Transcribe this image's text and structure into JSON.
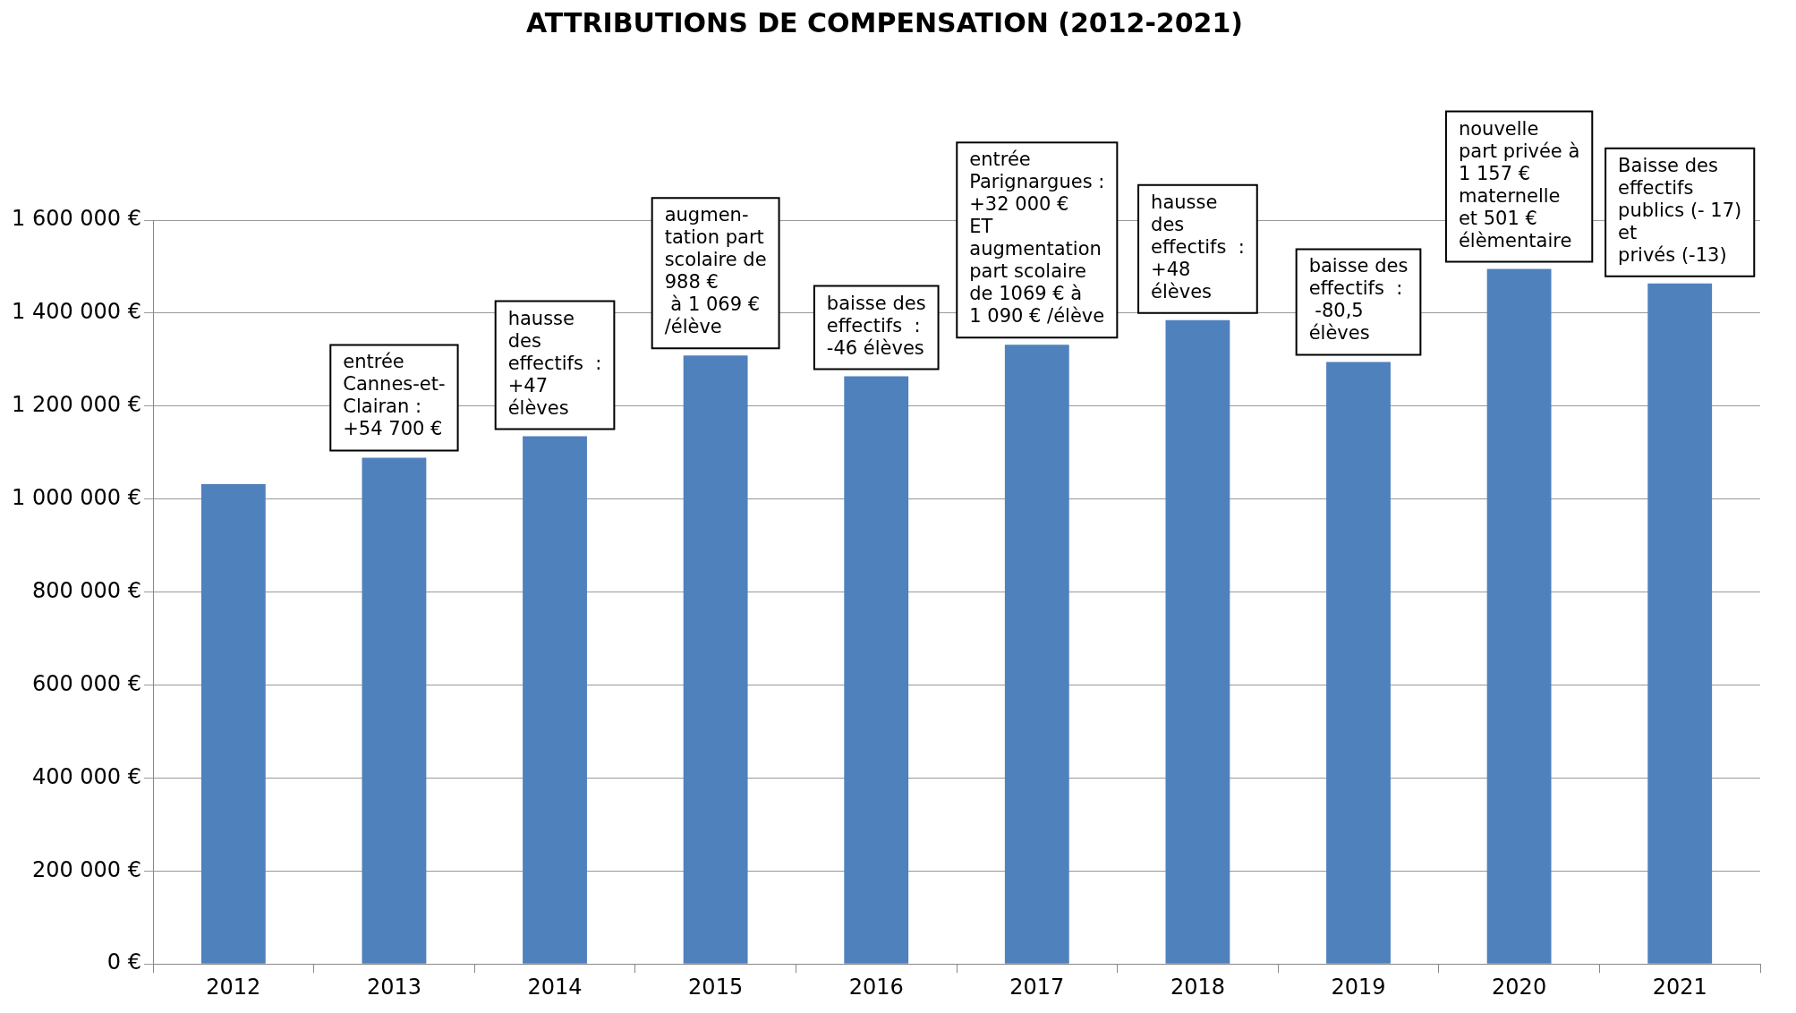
{
  "chart_data": {
    "type": "bar",
    "title": "ATTRIBUTIONS DE COMPENSATION (2012-2021)",
    "categories": [
      "2012",
      "2013",
      "2014",
      "2015",
      "2016",
      "2017",
      "2018",
      "2019",
      "2020",
      "2021"
    ],
    "values": [
      1032000,
      1089000,
      1135000,
      1309000,
      1264000,
      1332000,
      1385000,
      1295000,
      1495000,
      1464000
    ],
    "color": "#4f81bd",
    "ylim": [
      0,
      1600000
    ],
    "yticks": [
      {
        "value": 0,
        "label": "0 €"
      },
      {
        "value": 200000,
        "label": "200 000 €"
      },
      {
        "value": 400000,
        "label": "400 000 €"
      },
      {
        "value": 600000,
        "label": "600 000 €"
      },
      {
        "value": 800000,
        "label": "800 000 €"
      },
      {
        "value": 1000000,
        "label": "1 000 000 €"
      },
      {
        "value": 1200000,
        "label": "1 200 000 €"
      },
      {
        "value": 1400000,
        "label": "1 400 000 €"
      },
      {
        "value": 1600000,
        "label": "1 600 000 €"
      }
    ],
    "grid": "y",
    "annotations": [
      {
        "text": "entrée\nCannes-et-\nClairan :\n+54 700 €",
        "x": "2013",
        "y": 1089000
      },
      {
        "text": "hausse\ndes\neffectifs  :\n+47\nélèves",
        "x": "2014",
        "y": 1135000
      },
      {
        "text": "augmen-\ntation part\nscolaire de\n988 €\n à 1 069 €\n/élève",
        "x": "2015",
        "y": 1309000
      },
      {
        "text": "baisse des\neffectifs  :\n-46 élèves",
        "x": "2016",
        "y": 1264000
      },
      {
        "text": "entrée\nParignargues :\n+32 000 €\nET\naugmentation\npart scolaire\nde 1069 € à\n1 090 € /élève",
        "x": "2017",
        "y": 1332000
      },
      {
        "text": "hausse\ndes\neffectifs  :\n+48\nélèves",
        "x": "2018",
        "y": 1385000
      },
      {
        "text": "baisse des\neffectifs  :\n -80,5\nélèves",
        "x": "2019",
        "y": 1295000
      },
      {
        "text": "nouvelle\npart privée à\n1 157 €\nmaternelle\net 501 €\nélèmentaire",
        "x": "2020",
        "y": 1495000
      },
      {
        "text": "Baisse des\neffectifs\npublics (- 17)\net\nprivés (-13)",
        "x": "2021",
        "y": 1464000
      }
    ]
  }
}
